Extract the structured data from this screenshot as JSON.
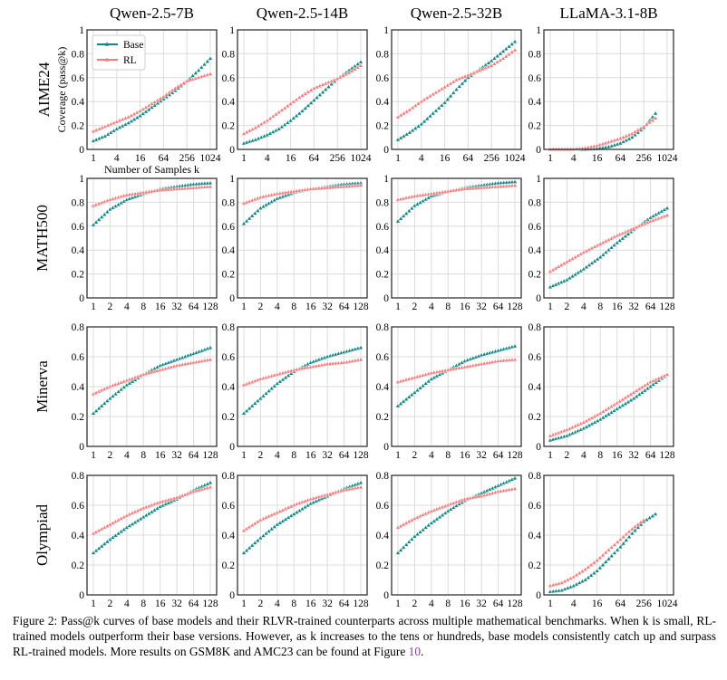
{
  "chart_data": {
    "type": "line",
    "grid": true,
    "legend": {
      "placement": "top-left",
      "entries": [
        "Base",
        "RL"
      ]
    },
    "colors": {
      "Base": "#138484",
      "RL": "#f57c7c"
    },
    "column_titles": [
      "Qwen-2.5-7B",
      "Qwen-2.5-14B",
      "Qwen-2.5-32B",
      "LLaMA-3.1-8B"
    ],
    "row_labels": [
      "AIME24",
      "MATH500",
      "Minerva",
      "Olympiad"
    ],
    "ylabel": "Coverage (pass@k)",
    "xlabel": "Number of Samples k",
    "panels": [
      {
        "row": 0,
        "col": 0,
        "xticks": [
          1,
          4,
          16,
          64,
          256,
          1024
        ],
        "ylim": [
          0,
          1
        ],
        "yticks": [
          0,
          0.2,
          0.4,
          0.6,
          0.8,
          1
        ],
        "k": [
          1,
          2,
          4,
          8,
          16,
          32,
          64,
          128,
          256,
          512,
          1024
        ],
        "series": [
          {
            "name": "Base",
            "values": [
              0.07,
              0.11,
              0.17,
              0.22,
              0.28,
              0.35,
              0.42,
              0.49,
              0.57,
              0.66,
              0.76
            ]
          },
          {
            "name": "RL",
            "values": [
              0.15,
              0.19,
              0.23,
              0.27,
              0.32,
              0.38,
              0.44,
              0.51,
              0.57,
              0.6,
              0.63
            ]
          }
        ]
      },
      {
        "row": 0,
        "col": 1,
        "xticks": [
          1,
          4,
          16,
          64,
          256,
          1024
        ],
        "ylim": [
          0,
          1
        ],
        "yticks": [
          0,
          0.2,
          0.4,
          0.6,
          0.8,
          1
        ],
        "k": [
          1,
          2,
          4,
          8,
          16,
          32,
          64,
          128,
          256,
          512,
          1024
        ],
        "series": [
          {
            "name": "Base",
            "values": [
              0.05,
              0.08,
              0.12,
              0.17,
              0.24,
              0.32,
              0.41,
              0.5,
              0.59,
              0.66,
              0.73
            ]
          },
          {
            "name": "RL",
            "values": [
              0.13,
              0.18,
              0.24,
              0.31,
              0.38,
              0.45,
              0.51,
              0.55,
              0.59,
              0.64,
              0.7
            ]
          }
        ]
      },
      {
        "row": 0,
        "col": 2,
        "xticks": [
          1,
          4,
          16,
          64,
          256,
          1024
        ],
        "ylim": [
          0,
          1
        ],
        "yticks": [
          0,
          0.2,
          0.4,
          0.6,
          0.8,
          1
        ],
        "k": [
          1,
          2,
          4,
          8,
          16,
          32,
          64,
          128,
          256,
          512,
          1024
        ],
        "series": [
          {
            "name": "Base",
            "values": [
              0.08,
              0.14,
              0.21,
              0.3,
              0.39,
              0.5,
              0.6,
              0.67,
              0.74,
              0.82,
              0.9
            ]
          },
          {
            "name": "RL",
            "values": [
              0.27,
              0.33,
              0.4,
              0.46,
              0.52,
              0.58,
              0.62,
              0.66,
              0.7,
              0.76,
              0.83
            ]
          }
        ]
      },
      {
        "row": 0,
        "col": 3,
        "xticks": [
          1,
          4,
          16,
          64,
          256,
          1024
        ],
        "ylim": [
          0,
          1
        ],
        "yticks": [
          0,
          0.2,
          0.4,
          0.6,
          0.8,
          1
        ],
        "k": [
          1,
          2,
          4,
          8,
          16,
          32,
          64,
          128,
          256,
          512
        ],
        "series": [
          {
            "name": "Base",
            "values": [
              0,
              0,
              0,
              0,
              0.005,
              0.02,
              0.05,
              0.1,
              0.18,
              0.3
            ]
          },
          {
            "name": "RL",
            "values": [
              0,
              0,
              0,
              0.01,
              0.03,
              0.06,
              0.09,
              0.13,
              0.19,
              0.26
            ]
          }
        ]
      },
      {
        "row": 1,
        "col": 0,
        "xticks": [
          1,
          2,
          4,
          8,
          16,
          32,
          64,
          128
        ],
        "ylim": [
          0,
          1
        ],
        "yticks": [
          0,
          0.2,
          0.4,
          0.6,
          0.8,
          1
        ],
        "k": [
          1,
          2,
          4,
          8,
          16,
          32,
          64,
          128
        ],
        "series": [
          {
            "name": "Base",
            "values": [
              0.61,
              0.74,
              0.82,
              0.87,
              0.91,
              0.93,
              0.95,
              0.96
            ]
          },
          {
            "name": "RL",
            "values": [
              0.77,
              0.82,
              0.86,
              0.88,
              0.9,
              0.91,
              0.92,
              0.93
            ]
          }
        ]
      },
      {
        "row": 1,
        "col": 1,
        "xticks": [
          1,
          2,
          4,
          8,
          16,
          32,
          64,
          128
        ],
        "ylim": [
          0,
          1
        ],
        "yticks": [
          0,
          0.2,
          0.4,
          0.6,
          0.8,
          1
        ],
        "k": [
          1,
          2,
          4,
          8,
          16,
          32,
          64,
          128
        ],
        "series": [
          {
            "name": "Base",
            "values": [
              0.62,
              0.75,
              0.83,
              0.88,
              0.91,
              0.93,
              0.95,
              0.96
            ]
          },
          {
            "name": "RL",
            "values": [
              0.79,
              0.84,
              0.87,
              0.89,
              0.91,
              0.92,
              0.93,
              0.94
            ]
          }
        ]
      },
      {
        "row": 1,
        "col": 2,
        "xticks": [
          1,
          2,
          4,
          8,
          16,
          32,
          64,
          128
        ],
        "ylim": [
          0,
          1
        ],
        "yticks": [
          0,
          0.2,
          0.4,
          0.6,
          0.8,
          1
        ],
        "k": [
          1,
          2,
          4,
          8,
          16,
          32,
          64,
          128
        ],
        "series": [
          {
            "name": "Base",
            "values": [
              0.64,
              0.77,
              0.85,
              0.89,
              0.92,
              0.94,
              0.96,
              0.97
            ]
          },
          {
            "name": "RL",
            "values": [
              0.82,
              0.85,
              0.87,
              0.89,
              0.91,
              0.92,
              0.93,
              0.94
            ]
          }
        ]
      },
      {
        "row": 1,
        "col": 3,
        "xticks": [
          1,
          2,
          4,
          8,
          16,
          32,
          64,
          128
        ],
        "ylim": [
          0,
          1
        ],
        "yticks": [
          0,
          0.2,
          0.4,
          0.6,
          0.8,
          1
        ],
        "k": [
          1,
          2,
          4,
          8,
          16,
          32,
          64,
          128
        ],
        "series": [
          {
            "name": "Base",
            "values": [
              0.09,
              0.15,
              0.24,
              0.34,
              0.46,
              0.57,
              0.67,
              0.75
            ]
          },
          {
            "name": "RL",
            "values": [
              0.22,
              0.3,
              0.38,
              0.45,
              0.52,
              0.58,
              0.64,
              0.69
            ]
          }
        ]
      },
      {
        "row": 2,
        "col": 0,
        "xticks": [
          1,
          2,
          4,
          8,
          16,
          32,
          64,
          128
        ],
        "ylim": [
          0,
          0.8
        ],
        "yticks": [
          0,
          0.2,
          0.4,
          0.6,
          0.8
        ],
        "k": [
          1,
          2,
          4,
          8,
          16,
          32,
          64,
          128
        ],
        "series": [
          {
            "name": "Base",
            "values": [
              0.22,
              0.32,
              0.41,
              0.48,
              0.54,
              0.58,
              0.62,
              0.66
            ]
          },
          {
            "name": "RL",
            "values": [
              0.35,
              0.4,
              0.44,
              0.48,
              0.51,
              0.54,
              0.56,
              0.58
            ]
          }
        ]
      },
      {
        "row": 2,
        "col": 1,
        "xticks": [
          1,
          2,
          4,
          8,
          16,
          32,
          64,
          128
        ],
        "ylim": [
          0,
          0.8
        ],
        "yticks": [
          0,
          0.2,
          0.4,
          0.6,
          0.8
        ],
        "k": [
          1,
          2,
          4,
          8,
          16,
          32,
          64,
          128
        ],
        "series": [
          {
            "name": "Base",
            "values": [
              0.22,
              0.32,
              0.42,
              0.5,
              0.56,
              0.6,
              0.63,
              0.66
            ]
          },
          {
            "name": "RL",
            "values": [
              0.41,
              0.45,
              0.48,
              0.51,
              0.53,
              0.55,
              0.56,
              0.58
            ]
          }
        ]
      },
      {
        "row": 2,
        "col": 2,
        "xticks": [
          1,
          2,
          4,
          8,
          16,
          32,
          64,
          128
        ],
        "ylim": [
          0,
          0.8
        ],
        "yticks": [
          0,
          0.2,
          0.4,
          0.6,
          0.8
        ],
        "k": [
          1,
          2,
          4,
          8,
          16,
          32,
          64,
          128
        ],
        "series": [
          {
            "name": "Base",
            "values": [
              0.27,
              0.36,
              0.45,
              0.51,
              0.57,
              0.61,
              0.64,
              0.67
            ]
          },
          {
            "name": "RL",
            "values": [
              0.43,
              0.46,
              0.49,
              0.51,
              0.53,
              0.55,
              0.57,
              0.58
            ]
          }
        ]
      },
      {
        "row": 2,
        "col": 3,
        "xticks": [
          1,
          2,
          4,
          8,
          16,
          32,
          64,
          128
        ],
        "ylim": [
          0,
          0.8
        ],
        "yticks": [
          0,
          0.2,
          0.4,
          0.6,
          0.8
        ],
        "k": [
          1,
          2,
          4,
          8,
          16,
          32,
          64,
          128
        ],
        "series": [
          {
            "name": "Base",
            "values": [
              0.04,
              0.07,
              0.12,
              0.18,
              0.25,
              0.32,
              0.4,
              0.48
            ]
          },
          {
            "name": "RL",
            "values": [
              0.07,
              0.11,
              0.16,
              0.22,
              0.29,
              0.36,
              0.43,
              0.48
            ]
          }
        ]
      },
      {
        "row": 3,
        "col": 0,
        "xticks": [
          1,
          2,
          4,
          8,
          16,
          32,
          64,
          128
        ],
        "ylim": [
          0,
          0.8
        ],
        "yticks": [
          0,
          0.2,
          0.4,
          0.6,
          0.8
        ],
        "k": [
          1,
          2,
          4,
          8,
          16,
          32,
          64,
          128
        ],
        "series": [
          {
            "name": "Base",
            "values": [
              0.28,
              0.37,
              0.45,
              0.52,
              0.59,
              0.64,
              0.7,
              0.75
            ]
          },
          {
            "name": "RL",
            "values": [
              0.41,
              0.47,
              0.53,
              0.58,
              0.62,
              0.65,
              0.69,
              0.72
            ]
          }
        ]
      },
      {
        "row": 3,
        "col": 1,
        "xticks": [
          1,
          2,
          4,
          8,
          16,
          32,
          64,
          128
        ],
        "ylim": [
          0,
          0.8
        ],
        "yticks": [
          0,
          0.2,
          0.4,
          0.6,
          0.8
        ],
        "k": [
          1,
          2,
          4,
          8,
          16,
          32,
          64,
          128
        ],
        "series": [
          {
            "name": "Base",
            "values": [
              0.28,
              0.38,
              0.47,
              0.54,
              0.61,
              0.66,
              0.71,
              0.75
            ]
          },
          {
            "name": "RL",
            "values": [
              0.43,
              0.5,
              0.55,
              0.6,
              0.64,
              0.67,
              0.7,
              0.72
            ]
          }
        ]
      },
      {
        "row": 3,
        "col": 2,
        "xticks": [
          1,
          2,
          4,
          8,
          16,
          32,
          64,
          128
        ],
        "ylim": [
          0,
          0.8
        ],
        "yticks": [
          0,
          0.2,
          0.4,
          0.6,
          0.8
        ],
        "k": [
          1,
          2,
          4,
          8,
          16,
          32,
          64,
          128
        ],
        "series": [
          {
            "name": "Base",
            "values": [
              0.28,
              0.39,
              0.48,
              0.56,
              0.63,
              0.68,
              0.73,
              0.78
            ]
          },
          {
            "name": "RL",
            "values": [
              0.45,
              0.51,
              0.56,
              0.6,
              0.64,
              0.66,
              0.69,
              0.71
            ]
          }
        ]
      },
      {
        "row": 3,
        "col": 3,
        "xticks": [
          1,
          4,
          16,
          64,
          256,
          1024
        ],
        "ylim": [
          0,
          0.8
        ],
        "yticks": [
          0,
          0.2,
          0.4,
          0.6,
          0.8
        ],
        "k": [
          1,
          2,
          4,
          8,
          16,
          32,
          64,
          128,
          256,
          512
        ],
        "series": [
          {
            "name": "Base",
            "values": [
              0.02,
              0.03,
              0.06,
              0.1,
              0.16,
              0.24,
              0.32,
              0.41,
              0.49,
              0.54
            ]
          },
          {
            "name": "RL",
            "values": [
              0.06,
              0.08,
              0.12,
              0.17,
              0.23,
              0.3,
              0.37,
              0.44,
              0.5,
              null
            ]
          }
        ]
      }
    ]
  },
  "caption": {
    "text": "Figure 2: Pass@k curves of base models and their RLVR-trained counterparts across multiple mathematical benchmarks. When k is small, RL-trained models outperform their base versions. However, as k increases to the tens or hundreds, base models consistently catch up and surpass RL-trained models. More results on GSM8K and AMC23 can be found at Figure ",
    "link": "10",
    "end": "."
  }
}
